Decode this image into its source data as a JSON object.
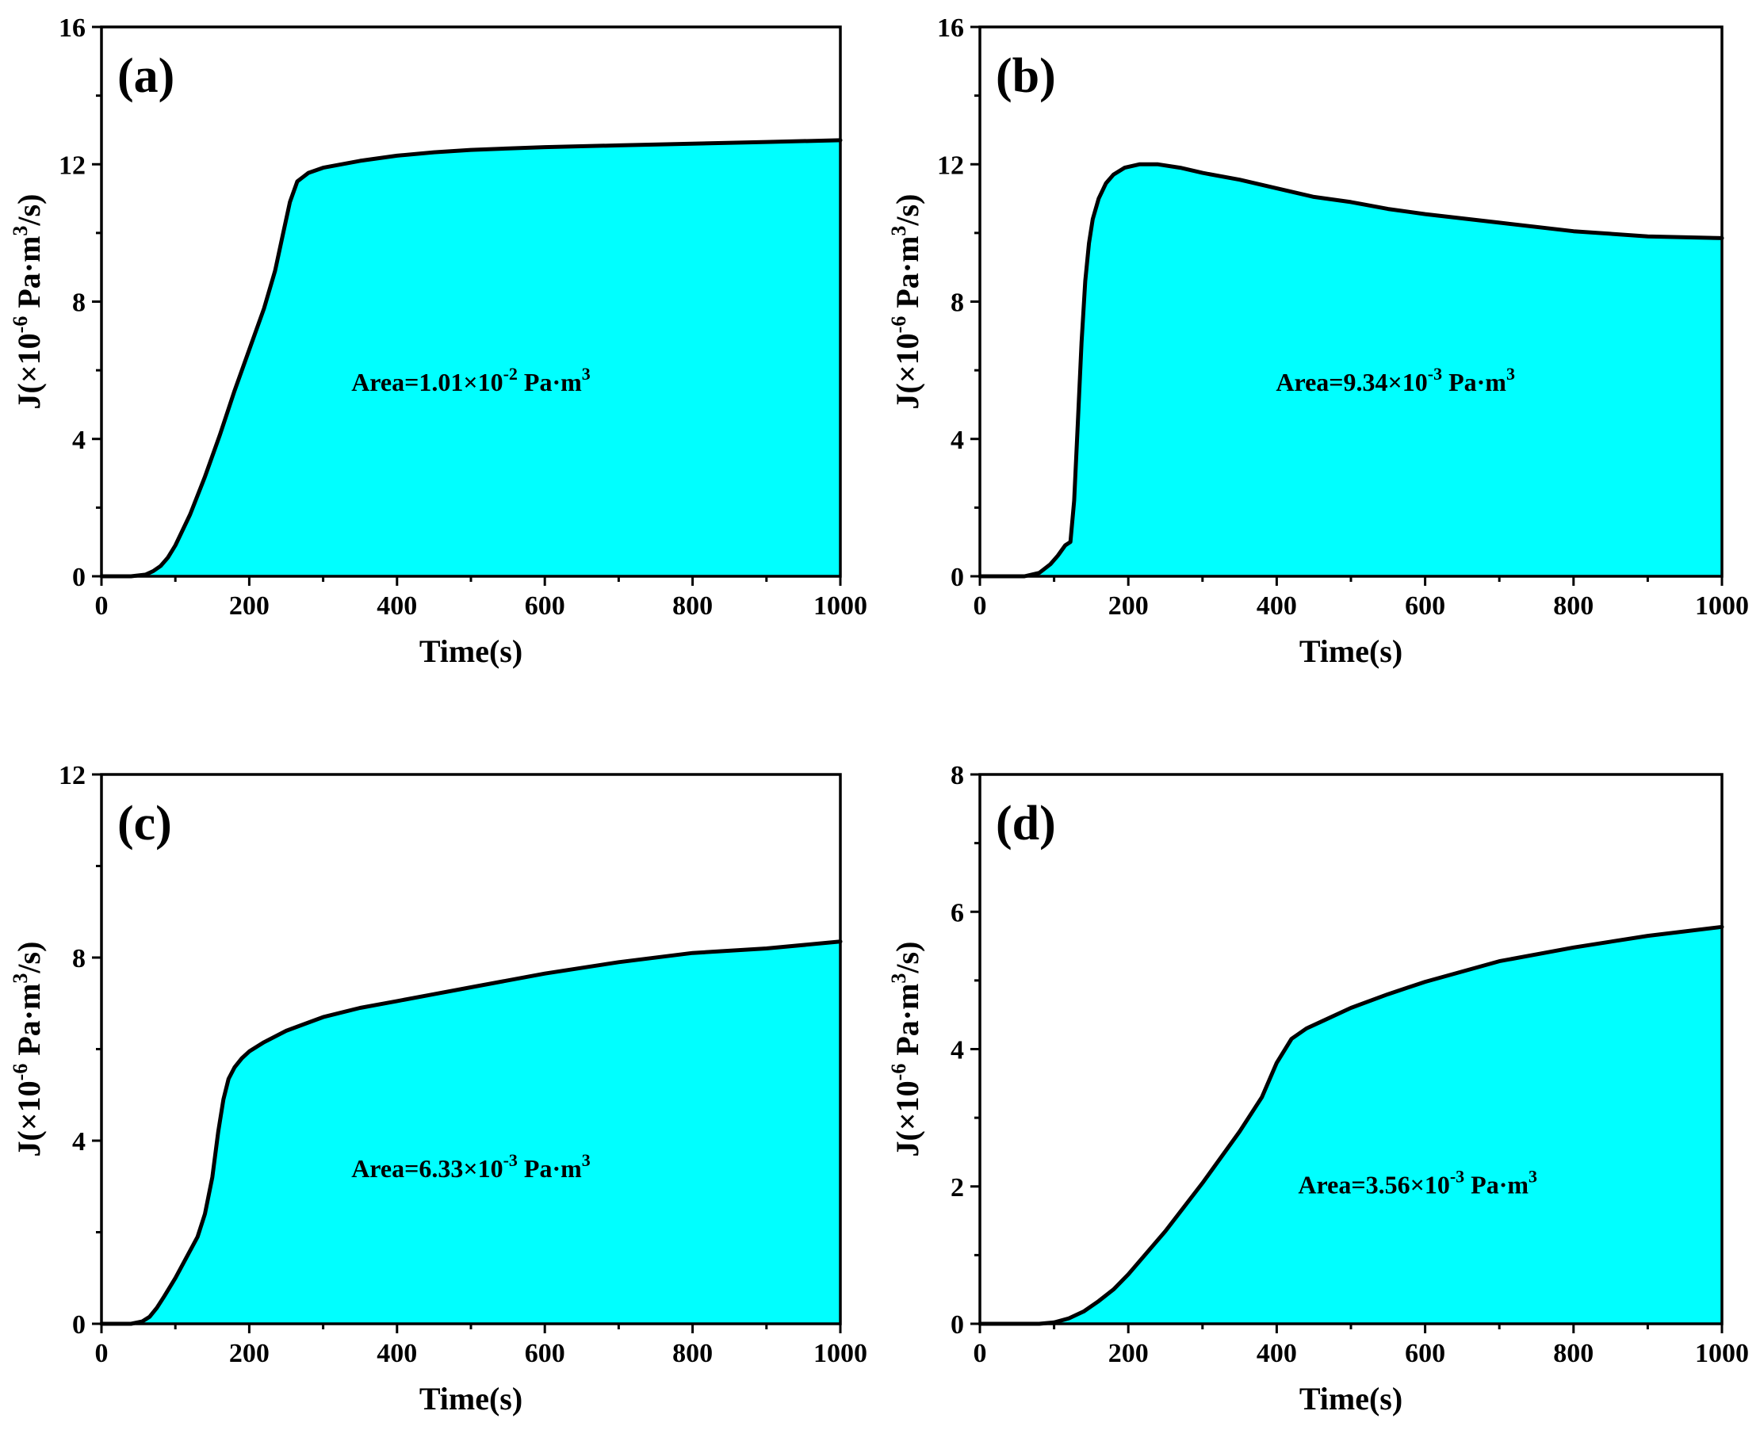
{
  "figure": {
    "fill_color": "#00FFFF",
    "line_color": "#000000"
  },
  "chart_data": [
    {
      "type": "area",
      "panel_label": "(a)",
      "xlabel": "Time(s)",
      "ylabel": {
        "base": "J(×10",
        "exp1": "-6",
        "mid": " Pa·m",
        "exp2": "3",
        "tail": "/s)"
      },
      "xlim": [
        0,
        1000
      ],
      "ylim": [
        0,
        16
      ],
      "xticks": [
        0,
        200,
        400,
        600,
        800,
        1000
      ],
      "yticks": [
        0,
        4,
        8,
        12,
        16
      ],
      "annotation": {
        "base": "Area=1.01×10",
        "exp": "-2",
        "mid": " Pa·m",
        "exp2": "3",
        "x": 500,
        "y": 5.4
      },
      "series": [
        {
          "name": "J",
          "x": [
            0,
            40,
            60,
            70,
            80,
            90,
            100,
            120,
            140,
            160,
            180,
            200,
            220,
            235,
            245,
            255,
            265,
            280,
            300,
            350,
            400,
            450,
            500,
            600,
            700,
            800,
            900,
            1000
          ],
          "y": [
            0,
            0,
            0.05,
            0.15,
            0.3,
            0.55,
            0.9,
            1.8,
            2.9,
            4.1,
            5.4,
            6.6,
            7.8,
            8.9,
            9.9,
            10.9,
            11.5,
            11.75,
            11.9,
            12.1,
            12.25,
            12.35,
            12.42,
            12.5,
            12.55,
            12.6,
            12.65,
            12.7
          ]
        }
      ]
    },
    {
      "type": "area",
      "panel_label": "(b)",
      "xlabel": "Time(s)",
      "ylabel": {
        "base": "J(×10",
        "exp1": "-6",
        "mid": " Pa·m",
        "exp2": "3",
        "tail": "/s)"
      },
      "xlim": [
        0,
        1000
      ],
      "ylim": [
        0,
        16
      ],
      "xticks": [
        0,
        200,
        400,
        600,
        800,
        1000
      ],
      "yticks": [
        0,
        4,
        8,
        12,
        16
      ],
      "annotation": {
        "base": "Area=9.34×10",
        "exp": "-3",
        "mid": " Pa·m",
        "exp2": "3",
        "x": 560,
        "y": 5.4
      },
      "series": [
        {
          "name": "J",
          "x": [
            0,
            60,
            80,
            95,
            105,
            115,
            122,
            127,
            132,
            137,
            142,
            147,
            152,
            160,
            170,
            180,
            195,
            215,
            240,
            270,
            300,
            350,
            400,
            450,
            500,
            550,
            600,
            700,
            800,
            900,
            1000
          ],
          "y": [
            0,
            0,
            0.1,
            0.35,
            0.6,
            0.9,
            1.0,
            2.2,
            4.5,
            6.8,
            8.6,
            9.7,
            10.4,
            11.0,
            11.45,
            11.7,
            11.9,
            12.0,
            12.0,
            11.9,
            11.75,
            11.55,
            11.3,
            11.05,
            10.9,
            10.7,
            10.55,
            10.3,
            10.05,
            9.9,
            9.85
          ]
        }
      ]
    },
    {
      "type": "area",
      "panel_label": "(c)",
      "xlabel": "Time(s)",
      "ylabel": {
        "base": "J(×10",
        "exp1": "-6",
        "mid": " Pa·m",
        "exp2": "3",
        "tail": "/s)"
      },
      "xlim": [
        0,
        1000
      ],
      "ylim": [
        0,
        12
      ],
      "xticks": [
        0,
        200,
        400,
        600,
        800,
        1000
      ],
      "yticks": [
        0,
        4,
        8,
        12
      ],
      "annotation": {
        "base": "Area=6.33×10",
        "exp": "-3",
        "mid": " Pa·m",
        "exp2": "3",
        "x": 500,
        "y": 3.2
      },
      "series": [
        {
          "name": "J",
          "x": [
            0,
            40,
            55,
            65,
            75,
            85,
            100,
            115,
            130,
            140,
            150,
            158,
            165,
            172,
            180,
            190,
            200,
            220,
            250,
            300,
            350,
            400,
            450,
            500,
            600,
            700,
            800,
            900,
            1000
          ],
          "y": [
            0,
            0,
            0.05,
            0.15,
            0.35,
            0.6,
            1.0,
            1.45,
            1.9,
            2.4,
            3.2,
            4.2,
            4.9,
            5.35,
            5.6,
            5.8,
            5.95,
            6.15,
            6.4,
            6.7,
            6.9,
            7.05,
            7.2,
            7.35,
            7.65,
            7.9,
            8.1,
            8.2,
            8.35
          ]
        }
      ]
    },
    {
      "type": "area",
      "panel_label": "(d)",
      "xlabel": "Time(s)",
      "ylabel": {
        "base": "J(×10",
        "exp1": "-6",
        "mid": " Pa·m",
        "exp2": "3",
        "tail": "/s)"
      },
      "xlim": [
        0,
        1000
      ],
      "ylim": [
        0,
        8
      ],
      "xticks": [
        0,
        200,
        400,
        600,
        800,
        1000
      ],
      "yticks": [
        0,
        2,
        4,
        6,
        8
      ],
      "annotation": {
        "base": "Area=3.56×10",
        "exp": "-3",
        "mid": " Pa·m",
        "exp2": "3",
        "x": 590,
        "y": 1.9
      },
      "series": [
        {
          "name": "J",
          "x": [
            0,
            80,
            100,
            120,
            140,
            160,
            180,
            200,
            250,
            300,
            350,
            380,
            400,
            420,
            440,
            460,
            500,
            550,
            600,
            700,
            800,
            900,
            1000
          ],
          "y": [
            0,
            0,
            0.02,
            0.08,
            0.18,
            0.33,
            0.5,
            0.72,
            1.35,
            2.05,
            2.8,
            3.3,
            3.8,
            4.15,
            4.3,
            4.4,
            4.6,
            4.8,
            4.98,
            5.28,
            5.48,
            5.65,
            5.78
          ]
        }
      ]
    }
  ]
}
